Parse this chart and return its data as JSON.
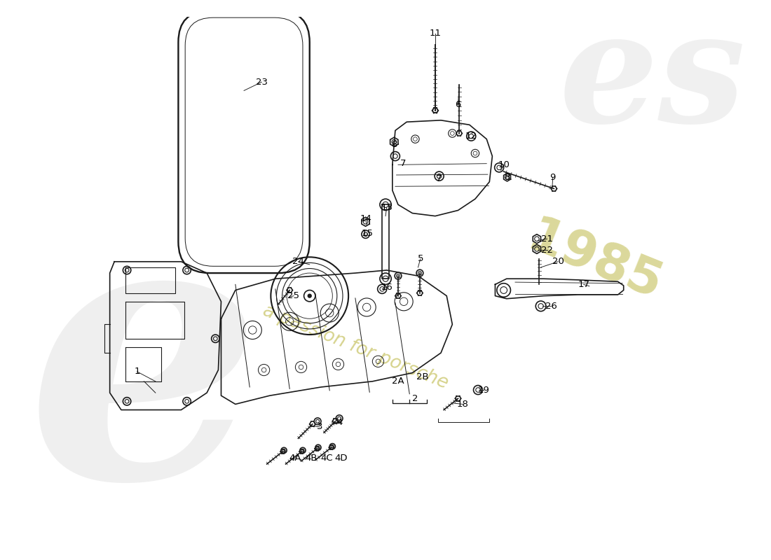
{
  "bg_color": "#ffffff",
  "lc": "#1a1a1a",
  "lw": 1.2,
  "watermark_gray": "#cccccc",
  "watermark_yellow": "#ccc870",
  "labels": [
    [
      "1",
      108,
      623
    ],
    [
      "2",
      595,
      670
    ],
    [
      "2A",
      565,
      640
    ],
    [
      "2B",
      608,
      632
    ],
    [
      "3",
      428,
      720
    ],
    [
      "4",
      463,
      712
    ],
    [
      "4A",
      385,
      775
    ],
    [
      "4B",
      413,
      775
    ],
    [
      "4C",
      440,
      775
    ],
    [
      "4D",
      465,
      775
    ],
    [
      "5",
      604,
      425
    ],
    [
      "6",
      670,
      155
    ],
    [
      "7",
      574,
      258
    ],
    [
      "7",
      637,
      285
    ],
    [
      "8",
      558,
      225
    ],
    [
      "8",
      756,
      282
    ],
    [
      "9",
      836,
      282
    ],
    [
      "10",
      750,
      260
    ],
    [
      "11",
      630,
      30
    ],
    [
      "12",
      693,
      210
    ],
    [
      "13",
      545,
      335
    ],
    [
      "14",
      508,
      355
    ],
    [
      "15",
      511,
      380
    ],
    [
      "16",
      545,
      475
    ],
    [
      "17",
      890,
      470
    ],
    [
      "18",
      678,
      680
    ],
    [
      "19",
      715,
      655
    ],
    [
      "20",
      845,
      430
    ],
    [
      "21",
      826,
      390
    ],
    [
      "22",
      826,
      410
    ],
    [
      "23",
      326,
      115
    ],
    [
      "24",
      390,
      430
    ],
    [
      "25",
      382,
      490
    ],
    [
      "26",
      833,
      508
    ]
  ]
}
